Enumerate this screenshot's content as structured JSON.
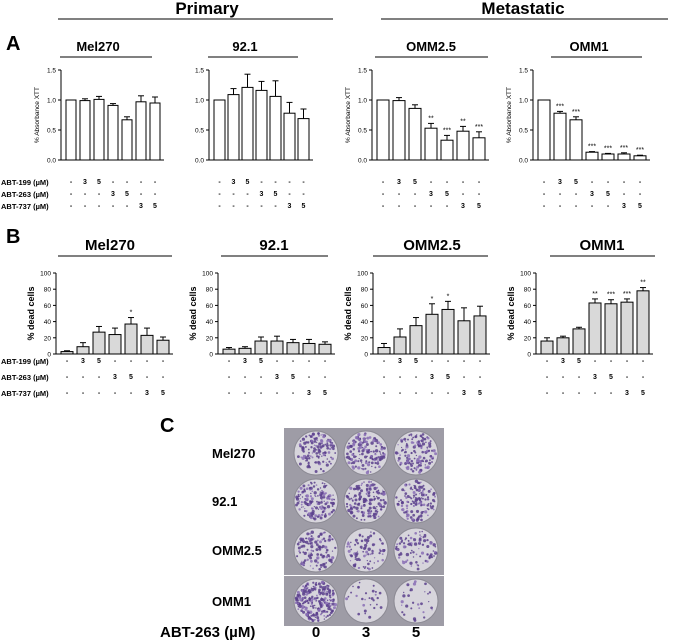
{
  "figure": {
    "group_primary": "Primary",
    "group_metastatic": "Metastatic",
    "panel_a_letter": "A",
    "panel_b_letter": "B",
    "panel_c_letter": "C"
  },
  "colors": {
    "bar_a": "#ffffff",
    "bar_b": "#d9d9d9",
    "ink": "#000000",
    "well_rim": "#d7d5dc",
    "plate_bg": "#9e9ca6"
  },
  "row_labels": {
    "abt199": "ABT-199 (µM)",
    "abt263": "ABT-263 (µM)",
    "abt737": "ABT-737 (µM)"
  },
  "treatment_rows": [
    [
      "-",
      "3",
      "5",
      "-",
      "-",
      "-",
      "-"
    ],
    [
      "-",
      "-",
      "-",
      "3",
      "5",
      "-",
      "-"
    ],
    [
      "-",
      "-",
      "-",
      "-",
      "-",
      "3",
      "5"
    ]
  ],
  "panel_c": {
    "rows": [
      "Mel270",
      "92.1",
      "OMM2.5",
      "OMM1"
    ],
    "xaxis_label": "ABT-263 (µM)",
    "doses": [
      "0",
      "3",
      "5"
    ],
    "stain_density": [
      [
        0.55,
        0.6,
        0.6
      ],
      [
        0.6,
        0.6,
        0.55
      ],
      [
        0.5,
        0.35,
        0.35
      ],
      [
        0.95,
        0.12,
        0.12
      ]
    ]
  },
  "chart_data": [
    {
      "panel": "A",
      "type": "bar",
      "title": "Mel270",
      "ylabel": "% Absorbance XTT",
      "ylim": [
        0,
        1.5
      ],
      "yticks": [
        "0.0",
        "0.5",
        "1.0",
        "1.5"
      ],
      "tick_values": [
        0,
        0.5,
        1.0,
        1.5
      ],
      "values": [
        1.0,
        0.99,
        1.01,
        0.91,
        0.67,
        0.97,
        0.95
      ],
      "errors": [
        0.0,
        0.03,
        0.05,
        0.03,
        0.05,
        0.1,
        0.1
      ],
      "annotations": [
        "",
        "",
        "",
        "",
        "",
        "",
        ""
      ]
    },
    {
      "panel": "A",
      "type": "bar",
      "title": "92.1",
      "ylabel": "",
      "ylim": [
        0,
        1.5
      ],
      "yticks": [
        "0.0",
        "0.5",
        "1.0",
        "1.5"
      ],
      "tick_values": [
        0,
        0.5,
        1.0,
        1.5
      ],
      "values": [
        1.0,
        1.09,
        1.21,
        1.16,
        1.06,
        0.78,
        0.69
      ],
      "errors": [
        0.0,
        0.1,
        0.22,
        0.15,
        0.26,
        0.18,
        0.16
      ],
      "annotations": [
        "",
        "",
        "",
        "",
        "",
        "",
        ""
      ]
    },
    {
      "panel": "A",
      "type": "bar",
      "title": "OMM2.5",
      "ylabel": "% Absorbance XTT",
      "ylim": [
        0,
        1.5
      ],
      "yticks": [
        "0.0",
        "0.5",
        "1.0",
        "1.5"
      ],
      "tick_values": [
        0,
        0.5,
        1.0,
        1.5
      ],
      "values": [
        1.0,
        0.99,
        0.86,
        0.53,
        0.33,
        0.48,
        0.37
      ],
      "errors": [
        0.0,
        0.05,
        0.06,
        0.08,
        0.08,
        0.08,
        0.1
      ],
      "annotations": [
        "",
        "",
        "",
        "**",
        "***",
        "**",
        "***"
      ]
    },
    {
      "panel": "A",
      "type": "bar",
      "title": "OMM1",
      "ylabel": "% Absorbance XTT",
      "ylim": [
        0,
        1.5
      ],
      "yticks": [
        "0.0",
        "0.5",
        "1.0",
        "1.5"
      ],
      "tick_values": [
        0,
        0.5,
        1.0,
        1.5
      ],
      "values": [
        1.0,
        0.78,
        0.67,
        0.13,
        0.1,
        0.1,
        0.07
      ],
      "errors": [
        0.0,
        0.03,
        0.05,
        0.01,
        0.01,
        0.02,
        0.01
      ],
      "annotations": [
        "",
        "***",
        "***",
        "***",
        "***",
        "***",
        "***"
      ]
    },
    {
      "panel": "B",
      "type": "bar",
      "title": "Mel270",
      "ylabel": "% dead cells",
      "ylim": [
        0,
        100
      ],
      "yticks": [
        "0",
        "20",
        "40",
        "60",
        "80",
        "100"
      ],
      "tick_values": [
        0,
        20,
        40,
        60,
        80,
        100
      ],
      "values": [
        3,
        9,
        27,
        24,
        37,
        23,
        17
      ],
      "errors": [
        1,
        5,
        7,
        8,
        8,
        9,
        4
      ],
      "annotations": [
        "",
        "",
        "",
        "",
        "*",
        "",
        ""
      ]
    },
    {
      "panel": "B",
      "type": "bar",
      "title": "92.1",
      "ylabel": "% dead cells",
      "ylim": [
        0,
        100
      ],
      "yticks": [
        "0",
        "20",
        "40",
        "60",
        "80",
        "100"
      ],
      "tick_values": [
        0,
        20,
        40,
        60,
        80,
        100
      ],
      "values": [
        6,
        7,
        16,
        16,
        14,
        13,
        12
      ],
      "errors": [
        2,
        2,
        5,
        6,
        4,
        5,
        3
      ],
      "annotations": [
        "",
        "",
        "",
        "",
        "",
        "",
        ""
      ]
    },
    {
      "panel": "B",
      "type": "bar",
      "title": "OMM2.5",
      "ylabel": "% dead cells",
      "ylim": [
        0,
        100
      ],
      "yticks": [
        "0",
        "20",
        "40",
        "60",
        "80",
        "100"
      ],
      "tick_values": [
        0,
        20,
        40,
        60,
        80,
        100
      ],
      "values": [
        8,
        21,
        35,
        49,
        55,
        41,
        47
      ],
      "errors": [
        5,
        10,
        10,
        13,
        10,
        16,
        12
      ],
      "annotations": [
        "",
        "",
        "",
        "*",
        "*",
        "",
        ""
      ]
    },
    {
      "panel": "B",
      "type": "bar",
      "title": "OMM1",
      "ylabel": "% dead cells",
      "ylim": [
        0,
        100
      ],
      "yticks": [
        "0",
        "20",
        "40",
        "60",
        "80",
        "100"
      ],
      "tick_values": [
        0,
        20,
        40,
        60,
        80,
        100
      ],
      "values": [
        16,
        20,
        31,
        63,
        62,
        64,
        78
      ],
      "errors": [
        4,
        2,
        2,
        5,
        5,
        4,
        4
      ],
      "annotations": [
        "",
        "",
        "",
        "**",
        "***",
        "***",
        "**"
      ]
    }
  ]
}
